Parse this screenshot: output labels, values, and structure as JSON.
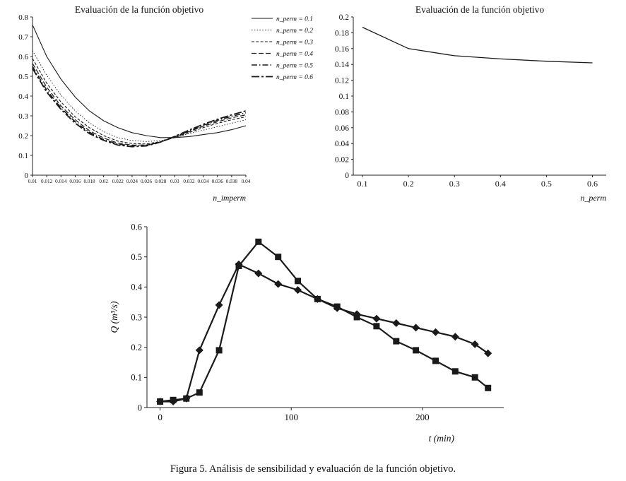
{
  "caption": "Figura 5. Análisis de sensibilidad y evaluación de la función objetivo.",
  "colors": {
    "line": "#1a1a1a",
    "axis": "#222222",
    "background": "#ffffff"
  },
  "chart_data": [
    {
      "id": "chart-imperm",
      "type": "line",
      "title": "Evaluación de la función objetivo",
      "xlabel": "n_imperm",
      "ylabel": "",
      "xlim": [
        0.01,
        0.04
      ],
      "ylim": [
        0,
        0.8
      ],
      "grid": false,
      "legend_position": "right-outside-top",
      "line_color": "#1a1a1a",
      "xticks": [
        {
          "v": 0.01,
          "label": "0.01"
        },
        {
          "v": 0.012,
          "label": "0.012"
        },
        {
          "v": 0.014,
          "label": "0.014"
        },
        {
          "v": 0.016,
          "label": "0.016"
        },
        {
          "v": 0.018,
          "label": "0.018"
        },
        {
          "v": 0.02,
          "label": "0.02"
        },
        {
          "v": 0.022,
          "label": "0.022"
        },
        {
          "v": 0.024,
          "label": "0.024"
        },
        {
          "v": 0.026,
          "label": "0.026"
        },
        {
          "v": 0.028,
          "label": "0.028"
        },
        {
          "v": 0.03,
          "label": "0.03"
        },
        {
          "v": 0.032,
          "label": "0.032"
        },
        {
          "v": 0.034,
          "label": "0.034"
        },
        {
          "v": 0.036,
          "label": "0.036"
        },
        {
          "v": 0.038,
          "label": "0.038"
        },
        {
          "v": 0.04,
          "label": "0.04"
        }
      ],
      "yticks": [
        {
          "v": 0,
          "label": "0"
        },
        {
          "v": 0.1,
          "label": "0.1"
        },
        {
          "v": 0.2,
          "label": "0.2"
        },
        {
          "v": 0.3,
          "label": "0.3"
        },
        {
          "v": 0.4,
          "label": "0.4"
        },
        {
          "v": 0.5,
          "label": "0.5"
        },
        {
          "v": 0.6,
          "label": "0.6"
        },
        {
          "v": 0.7,
          "label": "0.7"
        },
        {
          "v": 0.8,
          "label": "0.8"
        }
      ],
      "x": [
        0.01,
        0.012,
        0.014,
        0.016,
        0.018,
        0.02,
        0.022,
        0.024,
        0.026,
        0.028,
        0.03,
        0.032,
        0.034,
        0.036,
        0.038,
        0.04
      ],
      "series": [
        {
          "name": "n_perm = 0.1",
          "line_style": "solid",
          "values": [
            0.76,
            0.6,
            0.485,
            0.395,
            0.325,
            0.275,
            0.24,
            0.215,
            0.2,
            0.19,
            0.19,
            0.195,
            0.205,
            0.215,
            0.23,
            0.25
          ]
        },
        {
          "name": "n_perm = 0.2",
          "line_style": "dotted",
          "values": [
            0.63,
            0.505,
            0.405,
            0.325,
            0.265,
            0.22,
            0.19,
            0.175,
            0.17,
            0.175,
            0.19,
            0.21,
            0.228,
            0.245,
            0.263,
            0.28
          ]
        },
        {
          "name": "n_perm = 0.3",
          "line_style": "dashed",
          "values": [
            0.59,
            0.465,
            0.37,
            0.295,
            0.24,
            0.2,
            0.172,
            0.16,
            0.158,
            0.17,
            0.19,
            0.215,
            0.24,
            0.262,
            0.28,
            0.295
          ]
        },
        {
          "name": "n_perm = 0.4",
          "line_style": "long-dash",
          "values": [
            0.565,
            0.445,
            0.35,
            0.28,
            0.225,
            0.188,
            0.162,
            0.152,
            0.153,
            0.168,
            0.192,
            0.22,
            0.247,
            0.27,
            0.29,
            0.305
          ]
        },
        {
          "name": "n_perm = 0.5",
          "line_style": "dash-dot",
          "values": [
            0.55,
            0.43,
            0.34,
            0.27,
            0.217,
            0.18,
            0.157,
            0.148,
            0.15,
            0.168,
            0.194,
            0.224,
            0.252,
            0.277,
            0.298,
            0.315
          ]
        },
        {
          "name": "n_perm = 0.6",
          "line_style": "dash-dot-dot",
          "values": [
            0.54,
            0.42,
            0.333,
            0.263,
            0.21,
            0.176,
            0.152,
            0.144,
            0.148,
            0.167,
            0.196,
            0.228,
            0.257,
            0.283,
            0.305,
            0.325
          ]
        }
      ]
    },
    {
      "id": "chart-perm",
      "type": "line",
      "title": "Evaluación de la función objetivo",
      "xlabel": "n_perm",
      "ylabel": "",
      "xlim": [
        0.08,
        0.63
      ],
      "ylim": [
        0,
        0.2
      ],
      "grid": false,
      "legend_position": "none",
      "line_color": "#1a1a1a",
      "xticks": [
        {
          "v": 0.1,
          "label": "0.1"
        },
        {
          "v": 0.2,
          "label": "0.2"
        },
        {
          "v": 0.3,
          "label": "0.3"
        },
        {
          "v": 0.4,
          "label": "0.4"
        },
        {
          "v": 0.5,
          "label": "0.5"
        },
        {
          "v": 0.6,
          "label": "0.6"
        }
      ],
      "yticks": [
        {
          "v": 0,
          "label": "0"
        },
        {
          "v": 0.02,
          "label": "0.02"
        },
        {
          "v": 0.04,
          "label": "0.04"
        },
        {
          "v": 0.06,
          "label": "0.06"
        },
        {
          "v": 0.08,
          "label": "0.08"
        },
        {
          "v": 0.1,
          "label": "0.1"
        },
        {
          "v": 0.12,
          "label": "0.12"
        },
        {
          "v": 0.14,
          "label": "0.14"
        },
        {
          "v": 0.16,
          "label": "0.16"
        },
        {
          "v": 0.18,
          "label": "0.18"
        },
        {
          "v": 0.2,
          "label": "0.2"
        }
      ],
      "x": [
        0.1,
        0.2,
        0.3,
        0.4,
        0.5,
        0.6
      ],
      "series": [
        {
          "name": "función objetivo",
          "line_style": "solid",
          "values": [
            0.187,
            0.16,
            0.151,
            0.147,
            0.144,
            0.142
          ]
        }
      ]
    },
    {
      "id": "chart-hydro",
      "type": "line",
      "title": "",
      "xlabel": "t (min)",
      "ylabel": "Q (m³/s)",
      "xlim": [
        -10,
        262
      ],
      "ylim": [
        0,
        0.6
      ],
      "grid": false,
      "legend_position": "none",
      "line_color": "#1a1a1a",
      "xticks": [
        {
          "v": 0,
          "label": "0"
        },
        {
          "v": 100,
          "label": "100"
        },
        {
          "v": 200,
          "label": "200"
        }
      ],
      "yticks": [
        {
          "v": 0,
          "label": "0"
        },
        {
          "v": 0.1,
          "label": "0.1"
        },
        {
          "v": 0.2,
          "label": "0.2"
        },
        {
          "v": 0.3,
          "label": "0.3"
        },
        {
          "v": 0.4,
          "label": "0.4"
        },
        {
          "v": 0.5,
          "label": "0.5"
        },
        {
          "v": 0.6,
          "label": "0.6"
        }
      ],
      "x": [
        0,
        10,
        20,
        30,
        45,
        60,
        75,
        90,
        105,
        120,
        135,
        150,
        165,
        180,
        195,
        210,
        225,
        240,
        250
      ],
      "series": [
        {
          "name": "squares",
          "marker": "square",
          "line_style": "solid",
          "values": [
            0.02,
            0.025,
            0.03,
            0.05,
            0.19,
            0.47,
            0.55,
            0.5,
            0.42,
            0.36,
            0.335,
            0.3,
            0.27,
            0.22,
            0.19,
            0.155,
            0.12,
            0.1,
            0.065
          ]
        },
        {
          "name": "diamonds",
          "marker": "diamond",
          "line_style": "solid",
          "values": [
            0.02,
            0.02,
            0.03,
            0.19,
            0.34,
            0.475,
            0.445,
            0.41,
            0.39,
            0.36,
            0.33,
            0.31,
            0.295,
            0.28,
            0.265,
            0.25,
            0.235,
            0.21,
            0.18
          ]
        }
      ]
    }
  ]
}
